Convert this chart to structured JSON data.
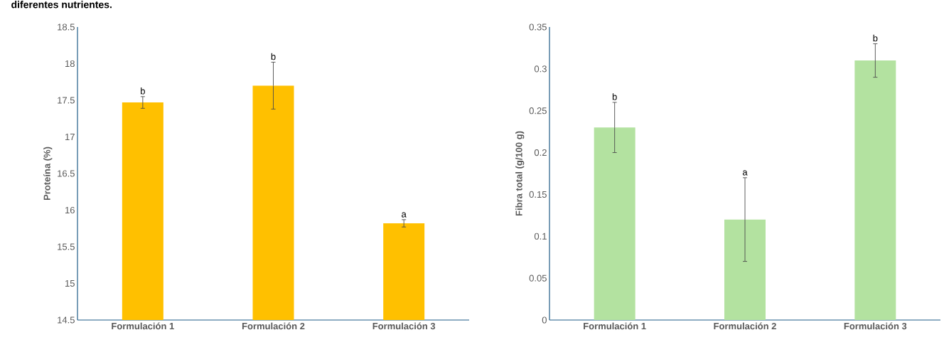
{
  "chart_data": [
    {
      "type": "bar",
      "ylabel": "Proteína (%)",
      "categories": [
        "Formulación 1",
        "Formulación 2",
        "Formulación 3"
      ],
      "values": [
        17.47,
        17.7,
        15.82
      ],
      "errors": [
        0.08,
        0.32,
        0.05
      ],
      "color": "#ffc000",
      "ylim": [
        14.5,
        18.5
      ],
      "yticks": [
        14.5,
        15,
        15.5,
        16,
        16.5,
        17,
        17.5,
        18,
        18.5
      ],
      "annotations": [
        "diferentes nutrientes.",
        {
          "text": "b",
          "x": "Formulación 1",
          "y": 17.55
        },
        {
          "text": "b",
          "x": "Formulación 2",
          "y": 18.02
        },
        {
          "text": "a",
          "x": "Formulación 3",
          "y": 15.87
        }
      ]
    },
    {
      "type": "bar",
      "ylabel": "Fibra total (g/100 g)",
      "categories": [
        "Formulación 1",
        "Formulación 2",
        "Formulación 3"
      ],
      "values": [
        0.23,
        0.12,
        0.31
      ],
      "errors": [
        0.03,
        0.05,
        0.02
      ],
      "color": "#b3e2a0",
      "ylim": [
        0,
        0.35
      ],
      "yticks": [
        0,
        0.05,
        0.1,
        0.15,
        0.2,
        0.25,
        0.3,
        0.35
      ],
      "annotations": [
        {
          "text": "b",
          "x": "Formulación 1",
          "y": 0.26
        },
        {
          "text": "a",
          "x": "Formulación 2",
          "y": 0.17
        },
        {
          "text": "b",
          "x": "Formulación 3",
          "y": 0.33
        }
      ]
    }
  ]
}
